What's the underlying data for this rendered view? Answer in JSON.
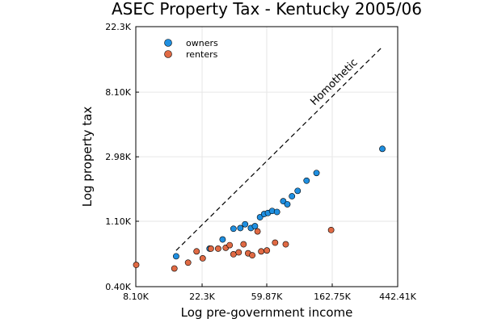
{
  "chart_data": {
    "type": "scatter",
    "title": "ASEC Property Tax - Kentucky 2005/06",
    "xlabel": "Log pre-government income",
    "ylabel": "Log property tax",
    "x_scale": "log",
    "y_scale": "log",
    "xlim": [
      8100,
      442410
    ],
    "ylim": [
      400,
      22300
    ],
    "x_ticks": [
      8100,
      22300,
      59870,
      162750,
      442410
    ],
    "x_tick_labels": [
      "8.10K",
      "22.3K",
      "59.87K",
      "162.75K",
      "442.41K"
    ],
    "y_ticks": [
      400,
      1100,
      2980,
      8100,
      22300
    ],
    "y_tick_labels": [
      "0.40K",
      "1.10K",
      "2.98K",
      "8.10K",
      "22.3K"
    ],
    "grid": true,
    "legend_position": "top-left",
    "colors": {
      "owners": "#1f8fe0",
      "renters": "#e06a44"
    },
    "series": [
      {
        "name": "owners",
        "points": [
          [
            15000,
            640
          ],
          [
            25000,
            720
          ],
          [
            30500,
            830
          ],
          [
            36000,
            980
          ],
          [
            40000,
            990
          ],
          [
            43000,
            1050
          ],
          [
            47000,
            990
          ],
          [
            50000,
            1020
          ],
          [
            54000,
            1170
          ],
          [
            57500,
            1230
          ],
          [
            61000,
            1250
          ],
          [
            65000,
            1290
          ],
          [
            70000,
            1270
          ],
          [
            77000,
            1500
          ],
          [
            82000,
            1430
          ],
          [
            88000,
            1620
          ],
          [
            96000,
            1760
          ],
          [
            110000,
            2060
          ],
          [
            128000,
            2320
          ],
          [
            350000,
            3370
          ]
        ]
      },
      {
        "name": "renters",
        "points": [
          [
            8150,
            560
          ],
          [
            14600,
            530
          ],
          [
            18000,
            580
          ],
          [
            20500,
            690
          ],
          [
            22500,
            620
          ],
          [
            25500,
            720
          ],
          [
            28500,
            720
          ],
          [
            32000,
            730
          ],
          [
            34000,
            760
          ],
          [
            36000,
            660
          ],
          [
            39000,
            680
          ],
          [
            42000,
            770
          ],
          [
            45000,
            670
          ],
          [
            48000,
            650
          ],
          [
            52000,
            940
          ],
          [
            55000,
            690
          ],
          [
            60000,
            700
          ],
          [
            68000,
            790
          ],
          [
            80000,
            770
          ],
          [
            160000,
            960
          ]
        ]
      }
    ],
    "reference_line": {
      "label": "Homothetic",
      "style": "dashed",
      "from": [
        15000,
        700
      ],
      "to": [
        350000,
        16300
      ]
    }
  }
}
